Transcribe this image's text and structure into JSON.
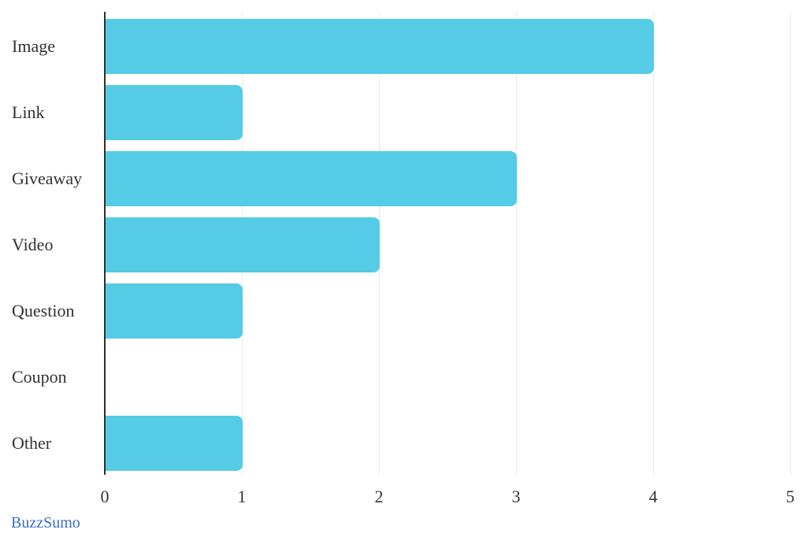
{
  "chart_data": {
    "type": "bar",
    "orientation": "horizontal",
    "title": "",
    "xlabel": "",
    "ylabel": "",
    "categories": [
      "Image",
      "Link",
      "Giveaway",
      "Video",
      "Question",
      "Coupon",
      "Other"
    ],
    "values": [
      4,
      1,
      3,
      2,
      1,
      0,
      1
    ],
    "xlim": [
      0,
      5
    ],
    "x_ticks": [
      "0",
      "1",
      "2",
      "3",
      "4",
      "5"
    ],
    "grid": "vertical-only",
    "legend": "none",
    "bar_color": "#55cbe6",
    "axis_color": "#2f2f2f",
    "grid_color": "#ebebeb",
    "label_color": "#333333"
  },
  "footer": {
    "source_label": "BuzzSumo",
    "source_color": "#3a6cc9"
  }
}
